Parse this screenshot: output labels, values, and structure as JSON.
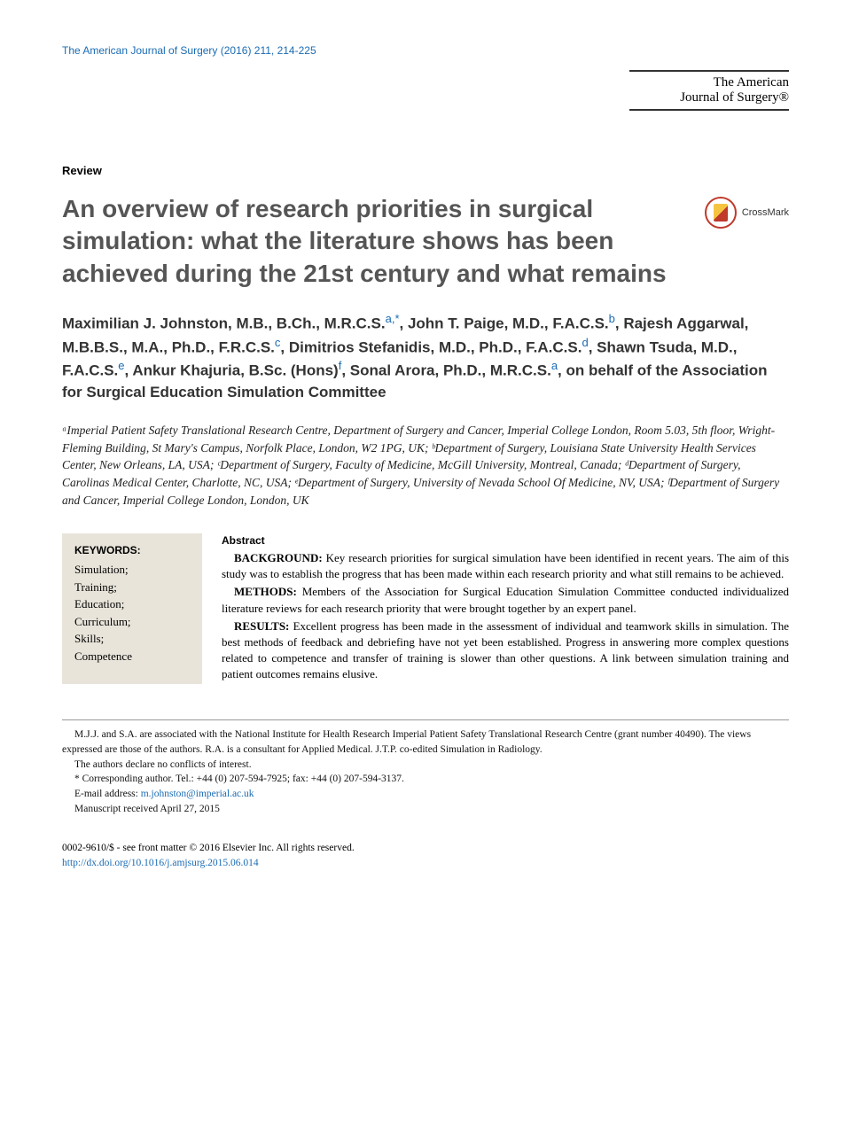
{
  "header": {
    "citation": "The American Journal of Surgery (2016) 211, 214-225",
    "journal_line1": "The American",
    "journal_line2": "Journal of Surgery®"
  },
  "article_type": "Review",
  "title": "An overview of research priorities in surgical simulation: what the literature shows has been achieved during the 21st century and what remains",
  "crossmark_label": "CrossMark",
  "authors_html": "Maximilian J. Johnston, M.B., B.Ch., M.R.C.S.<span class='aff-sup'>a,</span><span class='aff-sup'>*</span>, John T. Paige, M.D., F.A.C.S.<span class='aff-sup'>b</span>, Rajesh Aggarwal, M.B.B.S., M.A., Ph.D., F.R.C.S.<span class='aff-sup'>c</span>, Dimitrios Stefanidis, M.D., Ph.D., F.A.C.S.<span class='aff-sup'>d</span>, Shawn Tsuda, M.D., F.A.C.S.<span class='aff-sup'>e</span>, Ankur Khajuria, B.Sc. (Hons)<span class='aff-sup'>f</span>, Sonal Arora, Ph.D., M.R.C.S.<span class='aff-sup'>a</span>, on behalf of the Association for Surgical Education Simulation Committee",
  "affiliations": "ᵃImperial Patient Safety Translational Research Centre, Department of Surgery and Cancer, Imperial College London, Room 5.03, 5th floor, Wright-Fleming Building, St Mary's Campus, Norfolk Place, London, W2 1PG, UK; ᵇDepartment of Surgery, Louisiana State University Health Services Center, New Orleans, LA, USA; ᶜDepartment of Surgery, Faculty of Medicine, McGill University, Montreal, Canada; ᵈDepartment of Surgery, Carolinas Medical Center, Charlotte, NC, USA; ᵉDepartment of Surgery, University of Nevada School Of Medicine, NV, USA; ᶠDepartment of Surgery and Cancer, Imperial College London, London, UK",
  "keywords": {
    "heading": "KEYWORDS:",
    "items": [
      "Simulation;",
      "Training;",
      "Education;",
      "Curriculum;",
      "Skills;",
      "Competence"
    ]
  },
  "abstract": {
    "heading": "Abstract",
    "background_label": "BACKGROUND:",
    "background": "Key research priorities for surgical simulation have been identified in recent years. The aim of this study was to establish the progress that has been made within each research priority and what still remains to be achieved.",
    "methods_label": "METHODS:",
    "methods": "Members of the Association for Surgical Education Simulation Committee conducted individualized literature reviews for each research priority that were brought together by an expert panel.",
    "results_label": "RESULTS:",
    "results": "Excellent progress has been made in the assessment of individual and teamwork skills in simulation. The best methods of feedback and debriefing have not yet been established. Progress in answering more complex questions related to competence and transfer of training is slower than other questions. A link between simulation training and patient outcomes remains elusive."
  },
  "footnotes": {
    "funding": "M.J.J. and S.A. are associated with the National Institute for Health Research Imperial Patient Safety Translational Research Centre (grant number 40490). The views expressed are those of the authors. R.A. is a consultant for Applied Medical. J.T.P. co-edited Simulation in Radiology.",
    "coi": "The authors declare no conflicts of interest.",
    "corresponding": "* Corresponding author. Tel.: +44 (0) 207-594-7925; fax: +44 (0) 207-594-3137.",
    "email_label": "E-mail address: ",
    "email": "m.johnston@imperial.ac.uk",
    "received": "Manuscript received April 27, 2015"
  },
  "copyright": {
    "line1": "0002-9610/$ - see front matter © 2016 Elsevier Inc. All rights reserved.",
    "doi": "http://dx.doi.org/10.1016/j.amjsurg.2015.06.014"
  },
  "colors": {
    "link": "#1a6bb3",
    "title": "#555555",
    "keyword_bg": "#e8e4da"
  }
}
